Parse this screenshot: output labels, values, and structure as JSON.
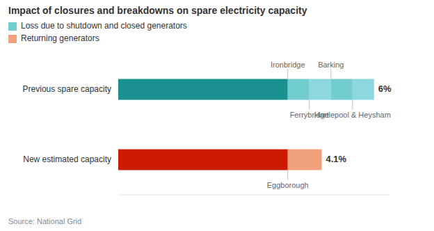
{
  "chart_data": {
    "type": "bar",
    "orientation": "horizontal",
    "stacked": true,
    "tick_labels": false,
    "grid": false,
    "title": "Impact of closures and breakdowns on spare electricity capacity",
    "source": "Source: National Grid",
    "legend_items": [
      {
        "label": "Loss due to shutdown and closed generators",
        "color": "#72cece"
      },
      {
        "label": "Returning generators",
        "color": "#f0a07a"
      }
    ],
    "categories": [
      "Previous spare capacity",
      "New estimated capacity"
    ],
    "series": [
      {
        "values": [
          5.5,
          5.5
        ],
        "colors": [
          "#1a9090",
          "#cc1a00"
        ]
      },
      {
        "values": [
          0.7,
          1.1
        ],
        "colors": [
          "#72cece",
          "#f0a07a"
        ]
      },
      {
        "values": [
          0.7,
          null
        ],
        "colors": [
          "#8dd8e0",
          null
        ]
      },
      {
        "values": [
          0.7,
          null
        ],
        "colors": [
          "#72cece",
          null
        ]
      },
      {
        "values": [
          0.7,
          null
        ],
        "colors": [
          "#8dd8e0",
          null
        ]
      }
    ],
    "end_labels": [
      {
        "value": 6,
        "label": "6%"
      },
      {
        "value": 4.1,
        "label": "4.1%"
      }
    ],
    "annotations": [
      {
        "text": "Ironbridge",
        "category": 0,
        "segment": 1,
        "side": "above"
      },
      {
        "text": "Barking",
        "category": 0,
        "segment": 3,
        "side": "above"
      },
      {
        "text": "Ferrybridge",
        "category": 0,
        "segment": 2,
        "side": "below"
      },
      {
        "text": "Hartlepool & Heysham",
        "category": 0,
        "segment": 4,
        "side": "below"
      },
      {
        "text": "Eggborough",
        "category": 1,
        "segment": 1,
        "side": "below"
      }
    ],
    "xlim": [
      0,
      8.8
    ]
  }
}
